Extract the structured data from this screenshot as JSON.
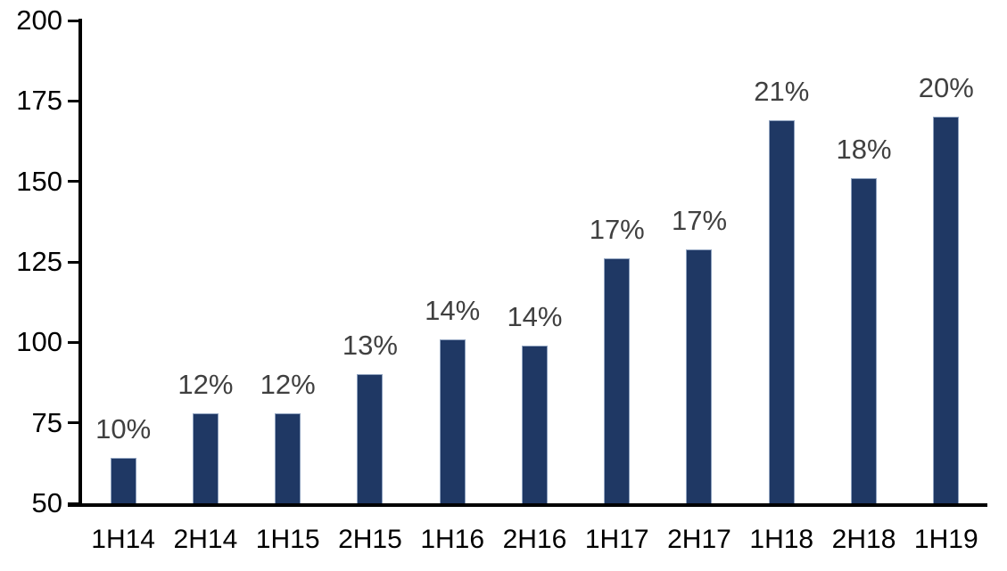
{
  "chart_data": {
    "type": "bar",
    "title": "",
    "xlabel": "",
    "ylabel": "",
    "categories": [
      "1H14",
      "2H14",
      "1H15",
      "2H15",
      "1H16",
      "2H16",
      "1H17",
      "2H17",
      "1H18",
      "2H18",
      "1H19"
    ],
    "values": [
      64,
      78,
      78,
      90,
      101,
      99,
      126,
      129,
      169,
      151,
      170
    ],
    "bar_labels": [
      "10%",
      "12%",
      "12%",
      "13%",
      "14%",
      "14%",
      "17%",
      "17%",
      "21%",
      "18%",
      "20%"
    ],
    "ylim": [
      50,
      200
    ],
    "yticks": [
      200,
      175,
      150,
      125,
      100,
      75,
      50
    ],
    "grid": false,
    "legend": false,
    "colors": {
      "bar_fill": "#1F3864",
      "bar_border": "#8FA2BF",
      "data_label": "#404040",
      "axis": "#000000",
      "background": "#ffffff"
    }
  }
}
